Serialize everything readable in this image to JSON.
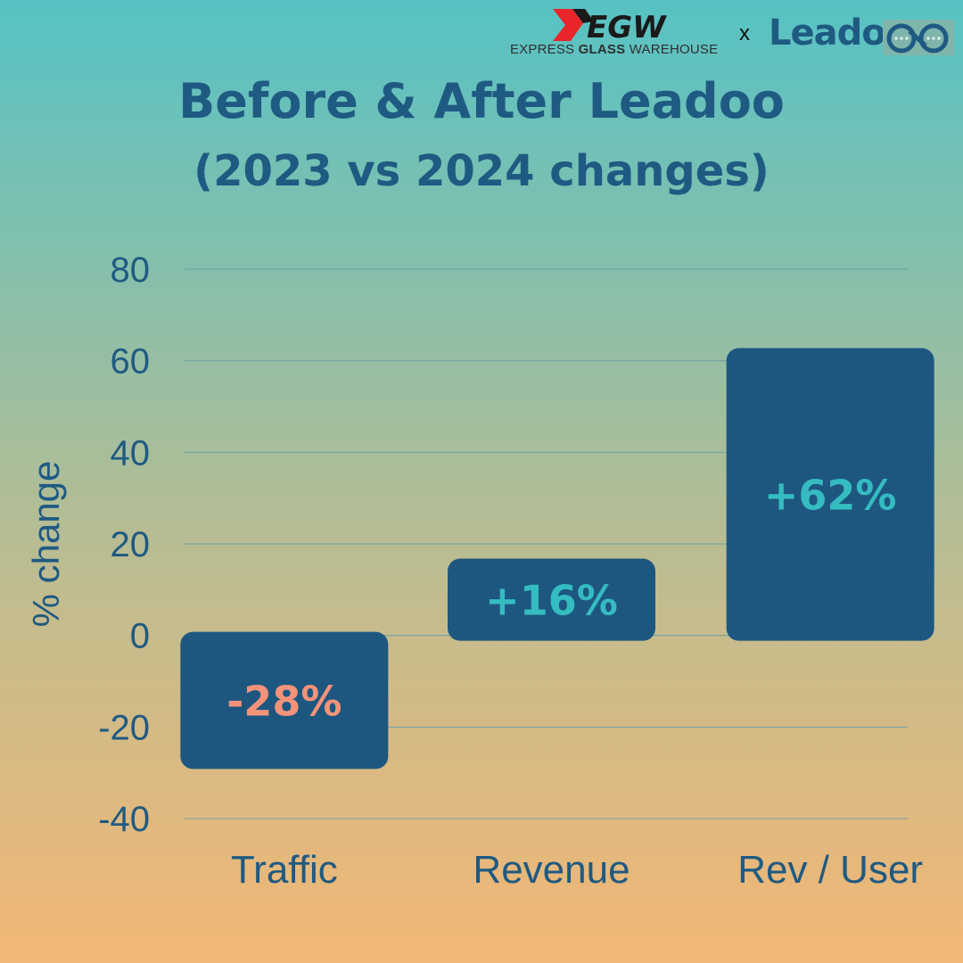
{
  "header": {
    "egw_logo_text": "EGW",
    "egw_tagline_pre": "EXPRESS ",
    "egw_tagline_bold": "GLASS",
    "egw_tagline_post": " WAREHOUSE",
    "separator": "x",
    "leadoo_logo_text": "Leadoo",
    "title_line_1": "Before & After Leadoo",
    "title_line_2": "(2023 vs 2024 changes)"
  },
  "colors": {
    "bar": "#1d5780",
    "grid": "#6e9ea6",
    "axis_text": "#1f5a82",
    "positive_label": "#35bcc0",
    "negative_label": "#f4937a"
  },
  "chart_data": {
    "type": "bar",
    "title": "Before & After Leadoo",
    "subtitle": "(2023 vs 2024 changes)",
    "categories": [
      "Traffic",
      "Revenue",
      "Rev / User"
    ],
    "values": [
      -28,
      16,
      62
    ],
    "data_labels": [
      "-28%",
      "+16%",
      "+62%"
    ],
    "xlabel": "",
    "ylabel": "% change",
    "ylim": [
      -40,
      80
    ],
    "yticks": [
      80,
      60,
      40,
      20,
      0,
      -20,
      -40
    ],
    "ytick_labels": [
      "80",
      "60",
      "40",
      "20",
      "0",
      "-20",
      "-40"
    ],
    "grid": true,
    "legend": "none"
  }
}
